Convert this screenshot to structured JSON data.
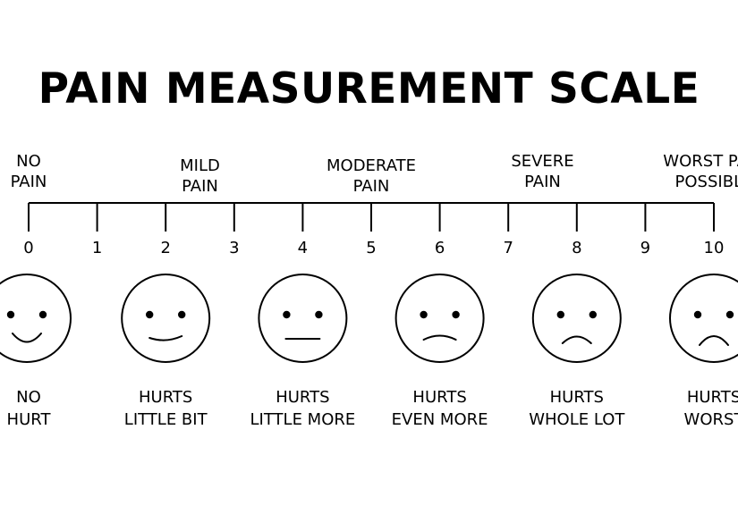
{
  "title": "PAIN MEASUREMENT SCALE",
  "scale": {
    "min": 0,
    "max": 10,
    "ticks": [
      "0",
      "1",
      "2",
      "3",
      "4",
      "5",
      "6",
      "7",
      "8",
      "9",
      "10"
    ]
  },
  "categories": [
    {
      "label": "NO\nPAIN",
      "at": 0
    },
    {
      "label": "MILD\nPAIN",
      "at": 2.5
    },
    {
      "label": "MODERATE\nPAIN",
      "at": 5
    },
    {
      "label": "SEVERE\nPAIN",
      "at": 7.5
    },
    {
      "label": "WORST PAIN\nPOSSIBLE",
      "at": 10
    }
  ],
  "faces": [
    {
      "at": 0,
      "mood": "big-smile",
      "label": "NO\nHURT"
    },
    {
      "at": 2,
      "mood": "smile",
      "label": "HURTS\nLITTLE BIT"
    },
    {
      "at": 4,
      "mood": "neutral",
      "label": "HURTS\nLITTLE MORE"
    },
    {
      "at": 6,
      "mood": "slight-frown",
      "label": "HURTS\nEVEN MORE"
    },
    {
      "at": 8,
      "mood": "frown",
      "label": "HURTS\nWHOLE LOT"
    },
    {
      "at": 10,
      "mood": "big-frown",
      "label": "HURTS\nWORST"
    }
  ]
}
